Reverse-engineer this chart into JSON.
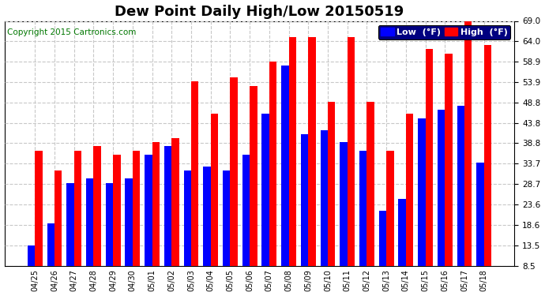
{
  "title": "Dew Point Daily High/Low 20150519",
  "copyright": "Copyright 2015 Cartronics.com",
  "legend_low": "Low  (°F)",
  "legend_high": "High  (°F)",
  "dates": [
    "04/25",
    "04/26",
    "04/27",
    "04/28",
    "04/29",
    "04/30",
    "05/01",
    "05/02",
    "05/03",
    "05/04",
    "05/05",
    "05/06",
    "05/07",
    "05/08",
    "05/09",
    "05/10",
    "05/11",
    "05/12",
    "05/13",
    "05/14",
    "05/15",
    "05/16",
    "05/17",
    "05/18"
  ],
  "high_values": [
    37.0,
    32.0,
    37.0,
    38.0,
    36.0,
    37.0,
    39.0,
    40.0,
    54.0,
    46.0,
    55.0,
    53.0,
    59.0,
    65.0,
    65.0,
    49.0,
    65.0,
    49.0,
    37.0,
    46.0,
    62.0,
    61.0,
    69.0,
    63.0
  ],
  "low_values": [
    13.5,
    19.0,
    29.0,
    30.0,
    29.0,
    30.0,
    36.0,
    38.0,
    32.0,
    33.0,
    32.0,
    36.0,
    46.0,
    58.0,
    41.0,
    42.0,
    39.0,
    37.0,
    22.0,
    25.0,
    45.0,
    47.0,
    48.0,
    34.0
  ],
  "bar_color_low": "#0000ff",
  "bar_color_high": "#ff0000",
  "bg_color": "#ffffff",
  "grid_color": "#c8c8c8",
  "ylim": [
    8.5,
    69.0
  ],
  "yticks": [
    8.5,
    13.5,
    18.6,
    23.6,
    28.7,
    33.7,
    38.8,
    43.8,
    48.8,
    53.9,
    58.9,
    64.0,
    69.0
  ],
  "title_fontsize": 13,
  "copyright_fontsize": 7.5,
  "legend_fontsize": 8
}
